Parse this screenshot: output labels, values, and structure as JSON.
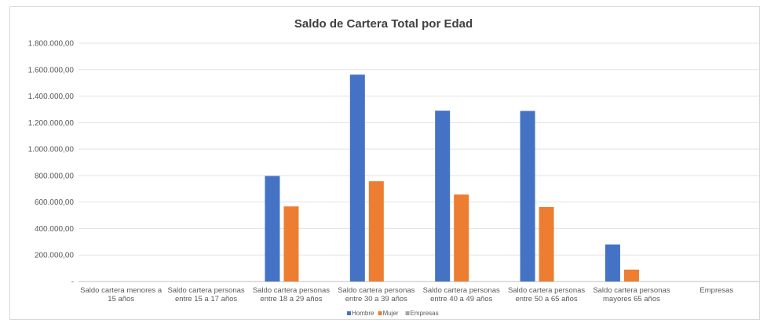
{
  "chart_data": {
    "type": "bar",
    "title": "Saldo de Cartera Total por Edad",
    "categories": [
      [
        "Saldo cartera menores a",
        "15 años"
      ],
      [
        "Saldo cartera personas",
        "entre 15 a 17 años"
      ],
      [
        "Saldo cartera personas",
        "entre 18 a 29 años"
      ],
      [
        "Saldo cartera personas",
        "entre 30 a 39 años"
      ],
      [
        "Saldo cartera personas",
        "entre 40 a 49 años"
      ],
      [
        "Saldo cartera personas",
        "entre 50 a 65 años"
      ],
      [
        "Saldo cartera personas",
        "mayores 65 años"
      ],
      [
        "Empresas"
      ]
    ],
    "series": [
      {
        "name": "Hombre",
        "color": "#4472c4",
        "values": [
          0,
          0,
          797000,
          1562000,
          1290000,
          1288000,
          280000,
          0
        ]
      },
      {
        "name": "Mujer",
        "color": "#ed7d31",
        "values": [
          0,
          0,
          567000,
          757000,
          657000,
          563000,
          90000,
          0
        ]
      },
      {
        "name": "Empresas",
        "color": "#a5a5a5",
        "values": [
          0,
          0,
          0,
          0,
          0,
          0,
          0,
          0
        ]
      }
    ],
    "ylim": [
      0,
      1800000
    ],
    "yticks": [
      "-",
      "200.000,00",
      "400.000,00",
      "600.000,00",
      "800.000,00",
      "1.000.000,00",
      "1.200.000,00",
      "1.400.000,00",
      "1.600.000,00",
      "1.800.000,00"
    ],
    "grid": true,
    "legend": "bottom-center"
  }
}
